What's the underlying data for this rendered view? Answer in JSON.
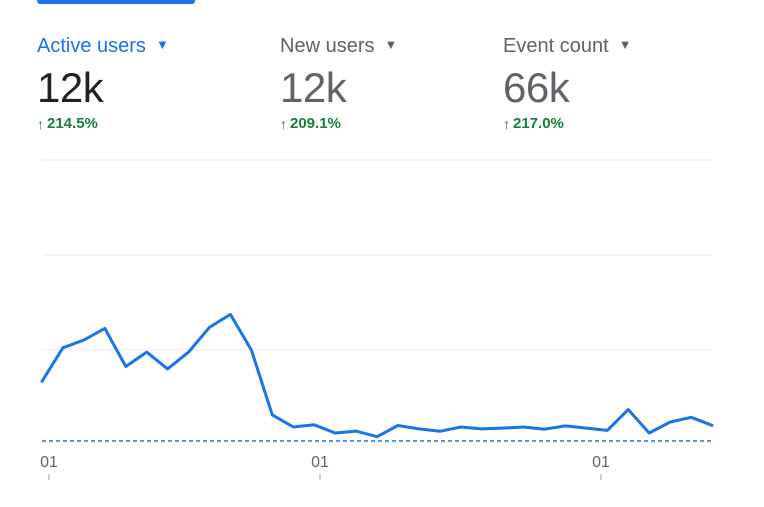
{
  "colors": {
    "accent": "#1a73e8",
    "positive": "#188038",
    "muted": "#5f6368",
    "grid": "#e8eaed"
  },
  "metrics": [
    {
      "label": "Active users",
      "value": "12k",
      "change": "214.5%",
      "selected": true,
      "change_icon": "arrow-up-icon",
      "menu_icon": "caret-down-icon"
    },
    {
      "label": "New users",
      "value": "12k",
      "change": "209.1%",
      "selected": false,
      "change_icon": "arrow-up-icon",
      "menu_icon": "caret-down-icon"
    },
    {
      "label": "Event count",
      "value": "66k",
      "change": "217.0%",
      "selected": false,
      "change_icon": "arrow-up-icon",
      "menu_icon": "caret-down-icon"
    }
  ],
  "chart_data": {
    "type": "line",
    "series": [
      {
        "values": [
          320,
          499,
          541,
          603,
          399,
          476,
          386,
          476,
          609,
          678,
          487,
          140,
          75,
          87,
          43,
          53,
          23,
          83,
          65,
          52,
          75,
          65,
          69,
          75,
          63,
          81,
          69,
          57,
          168,
          43,
          101,
          127,
          84
        ]
      }
    ],
    "x_tick_labels": [
      "01",
      "01",
      "01"
    ],
    "grid": true,
    "comparison_baseline": "dashed"
  }
}
